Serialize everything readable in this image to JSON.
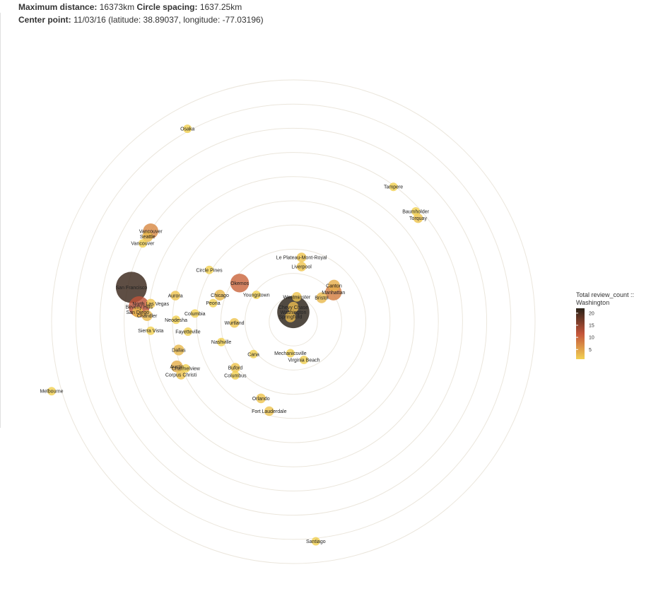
{
  "header": {
    "max_distance_label": "Maximum distance:",
    "max_distance_value": "16373km",
    "spacing_label": "Circle spacing:",
    "spacing_value": "1637.25km",
    "center_label": "Center point:",
    "center_value": "11/03/16 (latitude: 38.89037, longitude: -77.03196)"
  },
  "chart_data": {
    "type": "scatter",
    "projection": "polar-distance",
    "center_lat": 38.89037,
    "center_lon": -77.03196,
    "max_distance_km": 16373,
    "ring_spacing_km": 1637.25,
    "ring_count": 10,
    "legend": {
      "title_line1": "Total review_count ::",
      "title_line2": "Washington",
      "ticks": [
        20,
        15,
        10,
        5
      ],
      "min": 1,
      "max": 22,
      "color_low": "#f2d153",
      "color_mid": "#c4553a",
      "color_high": "#2b2218",
      "placement": "right"
    },
    "points": [
      {
        "name": "Osaka",
        "dx": -0.438,
        "dy": -0.798,
        "count": 1
      },
      {
        "name": "Tampere",
        "dx": 0.414,
        "dy": -0.558,
        "count": 1
      },
      {
        "name": "Baumholder",
        "dx": 0.506,
        "dy": -0.456,
        "count": 1
      },
      {
        "name": "Torquay",
        "dx": 0.516,
        "dy": -0.428,
        "count": 2
      },
      {
        "name": "Melbourne",
        "dx": -1.0,
        "dy": 0.287,
        "count": 1
      },
      {
        "name": "Santiago",
        "dx": 0.093,
        "dy": 0.908,
        "count": 1
      },
      {
        "name": "Le Plateau-Mont-Royal",
        "dx": 0.034,
        "dy": -0.266,
        "count": 2
      },
      {
        "name": "Liverpool",
        "dx": 0.034,
        "dy": -0.228,
        "count": 2
      },
      {
        "name": "Canton",
        "dx": 0.168,
        "dy": -0.149,
        "count": 4
      },
      {
        "name": "Manhattan",
        "dx": 0.166,
        "dy": -0.122,
        "count": 8
      },
      {
        "name": "Bristol",
        "dx": 0.117,
        "dy": -0.099,
        "count": 3
      },
      {
        "name": "Westminster",
        "dx": 0.014,
        "dy": -0.103,
        "count": 2
      },
      {
        "name": "Chevy Chase",
        "dx": 0.0,
        "dy": -0.06,
        "count": 3
      },
      {
        "name": "Washington",
        "dx": 0.0,
        "dy": -0.04,
        "count": 22
      },
      {
        "name": "Springfield",
        "dx": -0.012,
        "dy": -0.02,
        "count": 3
      },
      {
        "name": "Mechanicsville",
        "dx": -0.012,
        "dy": 0.13,
        "count": 1
      },
      {
        "name": "Virginia Beach",
        "dx": 0.044,
        "dy": 0.158,
        "count": 1
      },
      {
        "name": "Cana",
        "dx": -0.165,
        "dy": 0.134,
        "count": 1
      },
      {
        "name": "Buford",
        "dx": -0.24,
        "dy": 0.19,
        "count": 2
      },
      {
        "name": "Columbus",
        "dx": -0.24,
        "dy": 0.222,
        "count": 1
      },
      {
        "name": "Youngstown",
        "dx": -0.153,
        "dy": -0.111,
        "count": 1
      },
      {
        "name": "Okemos",
        "dx": -0.222,
        "dy": -0.16,
        "count": 10
      },
      {
        "name": "Chicago",
        "dx": -0.304,
        "dy": -0.11,
        "count": 3
      },
      {
        "name": "Circle Pines",
        "dx": -0.348,
        "dy": -0.214,
        "count": 1
      },
      {
        "name": "Wurtland",
        "dx": -0.244,
        "dy": 0.005,
        "count": 2
      },
      {
        "name": "Peoria",
        "dx": -0.332,
        "dy": -0.077,
        "count": 1
      },
      {
        "name": "Columbia",
        "dx": -0.407,
        "dy": -0.034,
        "count": 1
      },
      {
        "name": "Neodesha",
        "dx": -0.485,
        "dy": -0.008,
        "count": 1
      },
      {
        "name": "Nashville",
        "dx": -0.298,
        "dy": 0.084,
        "count": 1
      },
      {
        "name": "Fayetteville",
        "dx": -0.436,
        "dy": 0.041,
        "count": 1
      },
      {
        "name": "Dallas",
        "dx": -0.474,
        "dy": 0.117,
        "count": 3
      },
      {
        "name": "Austin",
        "dx": -0.482,
        "dy": 0.185,
        "count": 4
      },
      {
        "name": "Channelview",
        "dx": -0.445,
        "dy": 0.193,
        "count": 1
      },
      {
        "name": "Corpus Christi",
        "dx": -0.465,
        "dy": 0.219,
        "count": 2
      },
      {
        "name": "Orlando",
        "dx": -0.134,
        "dy": 0.317,
        "count": 2
      },
      {
        "name": "Fort Lauderdale",
        "dx": -0.1,
        "dy": 0.37,
        "count": 2
      },
      {
        "name": "Vancouver",
        "dx": -0.59,
        "dy": -0.375,
        "count": 7
      },
      {
        "name": "Seattle",
        "dx": -0.603,
        "dy": -0.352,
        "count": 3
      },
      {
        "name": "Vancouver",
        "dx": -0.623,
        "dy": -0.324,
        "count": 1
      },
      {
        "name": "Aurora",
        "dx": -0.488,
        "dy": -0.108,
        "count": 2
      },
      {
        "name": "San Francisco",
        "dx": -0.67,
        "dy": -0.142,
        "count": 21
      },
      {
        "name": "North Las Vegas",
        "dx": -0.59,
        "dy": -0.075,
        "count": 2
      },
      {
        "name": "Beverly Hills",
        "dx": -0.638,
        "dy": -0.062,
        "count": 12
      },
      {
        "name": "San Diego",
        "dx": -0.644,
        "dy": -0.04,
        "count": 3
      },
      {
        "name": "Chandler",
        "dx": -0.605,
        "dy": -0.025,
        "count": 3
      },
      {
        "name": "Sierra Vista",
        "dx": -0.59,
        "dy": 0.037,
        "count": 1
      }
    ]
  }
}
